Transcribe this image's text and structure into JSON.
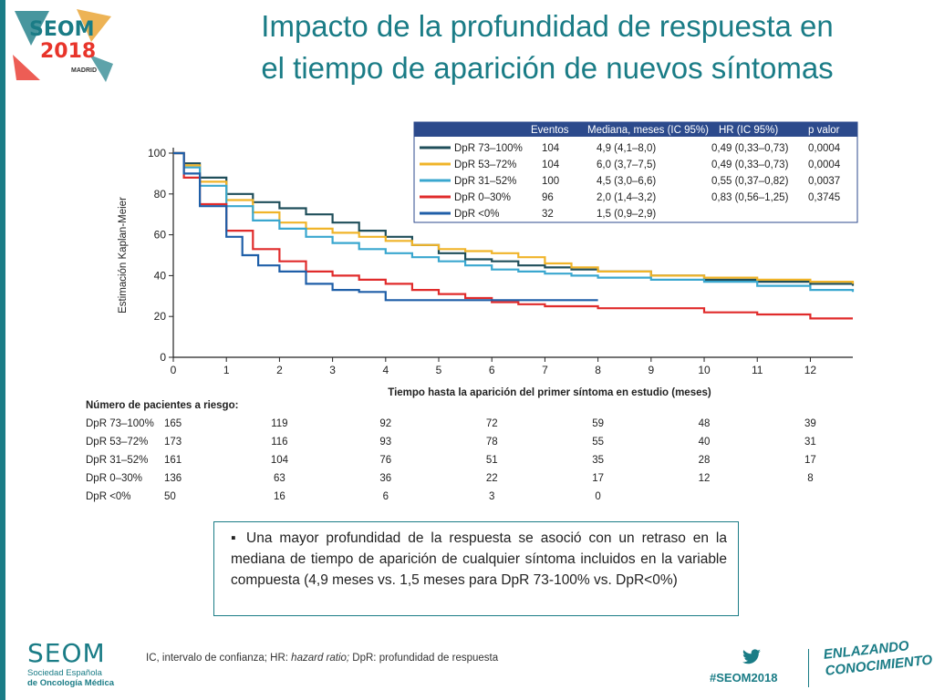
{
  "slide": {
    "title_line1": "Impacto de la profundidad de respuesta  en",
    "title_line2": "el tiempo de aparición de nuevos síntomas",
    "logo_text": "SEOM",
    "logo_year": "2018",
    "logo_city": "MADRID",
    "note": "▪ Una mayor profundidad de la respuesta se asoció con un retraso en la mediana de tiempo de aparición de cualquier síntoma incluidos en la variable compuesta (4,9 meses vs. 1,5 meses para DpR 73-100% vs. DpR<0%)",
    "footer_seom": "SEOM",
    "footer_society_1": "Sociedad Española",
    "footer_society_2": "de Oncología Médica",
    "hashtag": "#SEOM2018",
    "enlazando_1": "ENLAZANDO",
    "enlazando_2": "CONOCIMIENTO",
    "colors": {
      "accent": "#1a7c86",
      "accent_red": "#e8342a"
    }
  },
  "footnote": {
    "prefix": "IC, intervalo de confianza; HR: ",
    "italic": "hazard ratio;",
    "suffix": " DpR: profundidad  de respuesta"
  },
  "chart_data": {
    "type": "line",
    "ylabel": "Estimación Kaplan-Meier",
    "xlabel": "Tiempo hasta la aparición del primer síntoma en estudio (meses)",
    "xlim": [
      0,
      12.8
    ],
    "ylim": [
      0,
      100
    ],
    "xticks": [
      0,
      1,
      2,
      3,
      4,
      5,
      6,
      7,
      8,
      9,
      10,
      11,
      12
    ],
    "yticks": [
      0,
      20,
      40,
      60,
      80,
      100
    ],
    "legend_headers": [
      "Eventos",
      "Mediana, meses (IC 95%)",
      "HR (IC 95%)",
      "p valor"
    ],
    "series": [
      {
        "name": "DpR 73–100%",
        "color": "#1f4e5a",
        "events": "104",
        "median": "4,9 (4,1–8,0)",
        "hr": "0,49 (0,33–0,73)",
        "p": "0,0004",
        "points": [
          [
            0,
            100
          ],
          [
            0.2,
            95
          ],
          [
            0.5,
            88
          ],
          [
            1,
            80
          ],
          [
            1.5,
            76
          ],
          [
            2,
            73
          ],
          [
            2.5,
            70
          ],
          [
            3,
            66
          ],
          [
            3.5,
            62
          ],
          [
            4,
            59
          ],
          [
            4.5,
            55
          ],
          [
            5,
            51
          ],
          [
            5.5,
            48
          ],
          [
            6,
            47
          ],
          [
            6.5,
            45
          ],
          [
            7,
            44
          ],
          [
            7.5,
            43
          ],
          [
            8,
            42
          ],
          [
            9,
            40
          ],
          [
            10,
            38
          ],
          [
            11,
            37
          ],
          [
            12,
            36
          ],
          [
            12.8,
            35
          ]
        ]
      },
      {
        "name": "DpR 53–72%",
        "color": "#f0b429",
        "events": "104",
        "median": "6,0 (3,7–7,5)",
        "hr": "0,49 (0,33–0,73)",
        "p": "0,0004",
        "points": [
          [
            0,
            100
          ],
          [
            0.2,
            94
          ],
          [
            0.5,
            86
          ],
          [
            1,
            77
          ],
          [
            1.5,
            71
          ],
          [
            2,
            66
          ],
          [
            2.5,
            63
          ],
          [
            3,
            61
          ],
          [
            3.5,
            59
          ],
          [
            4,
            57
          ],
          [
            4.5,
            55
          ],
          [
            5,
            53
          ],
          [
            5.5,
            52
          ],
          [
            6,
            51
          ],
          [
            6.5,
            49
          ],
          [
            7,
            46
          ],
          [
            7.5,
            44
          ],
          [
            8,
            42
          ],
          [
            9,
            40
          ],
          [
            10,
            39
          ],
          [
            11,
            38
          ],
          [
            12,
            37
          ],
          [
            12.8,
            36
          ]
        ]
      },
      {
        "name": "DpR 31–52%",
        "color": "#3aa7cf",
        "events": "100",
        "median": "4,5 (3,0–6,6)",
        "hr": "0,55 (0,37–0,82)",
        "p": "0,0037",
        "points": [
          [
            0,
            100
          ],
          [
            0.2,
            93
          ],
          [
            0.5,
            84
          ],
          [
            1,
            74
          ],
          [
            1.5,
            67
          ],
          [
            2,
            63
          ],
          [
            2.5,
            59
          ],
          [
            3,
            56
          ],
          [
            3.5,
            53
          ],
          [
            4,
            51
          ],
          [
            4.5,
            49
          ],
          [
            5,
            47
          ],
          [
            5.5,
            45
          ],
          [
            6,
            43
          ],
          [
            6.5,
            42
          ],
          [
            7,
            41
          ],
          [
            7.5,
            40
          ],
          [
            8,
            39
          ],
          [
            9,
            38
          ],
          [
            10,
            37
          ],
          [
            11,
            35
          ],
          [
            12,
            33
          ],
          [
            12.8,
            32
          ]
        ]
      },
      {
        "name": "DpR 0–30%",
        "color": "#e02b2b",
        "events": "96",
        "median": "2,0 (1,4–3,2)",
        "hr": "0,83 (0,56–1,25)",
        "p": "0,3745",
        "points": [
          [
            0,
            100
          ],
          [
            0.2,
            88
          ],
          [
            0.5,
            75
          ],
          [
            1,
            62
          ],
          [
            1.5,
            53
          ],
          [
            2,
            47
          ],
          [
            2.5,
            42
          ],
          [
            3,
            40
          ],
          [
            3.5,
            38
          ],
          [
            4,
            36
          ],
          [
            4.5,
            33
          ],
          [
            5,
            31
          ],
          [
            5.5,
            29
          ],
          [
            6,
            27
          ],
          [
            6.5,
            26
          ],
          [
            7,
            25
          ],
          [
            8,
            24
          ],
          [
            9,
            24
          ],
          [
            10,
            22
          ],
          [
            11,
            21
          ],
          [
            12,
            19
          ],
          [
            12.8,
            19
          ]
        ]
      },
      {
        "name": "DpR <0%",
        "color": "#1f5fa8",
        "events": "32",
        "median": "1,5 (0,9–2,9)",
        "hr": "",
        "p": "",
        "points": [
          [
            0,
            100
          ],
          [
            0.2,
            90
          ],
          [
            0.5,
            74
          ],
          [
            1,
            59
          ],
          [
            1.3,
            50
          ],
          [
            1.6,
            45
          ],
          [
            2,
            42
          ],
          [
            2.5,
            36
          ],
          [
            3,
            33
          ],
          [
            3.5,
            32
          ],
          [
            4,
            28
          ],
          [
            5,
            28
          ],
          [
            6,
            28
          ],
          [
            7,
            28
          ],
          [
            8,
            28
          ]
        ]
      }
    ],
    "risk_table": {
      "title": "Número de pacientes a riesgo:",
      "times": [
        0,
        2,
        4,
        6,
        8,
        10,
        12
      ],
      "rows": [
        {
          "label": "DpR 73–100%",
          "values": [
            "165",
            "119",
            "92",
            "72",
            "59",
            "48",
            "39"
          ]
        },
        {
          "label": "DpR 53–72%",
          "values": [
            "173",
            "116",
            "93",
            "78",
            "55",
            "40",
            "31"
          ]
        },
        {
          "label": "DpR 31–52%",
          "values": [
            "161",
            "104",
            "76",
            "51",
            "35",
            "28",
            "17"
          ]
        },
        {
          "label": "DpR 0–30%",
          "values": [
            "136",
            "63",
            "36",
            "22",
            "17",
            "12",
            "8"
          ]
        },
        {
          "label": "DpR <0%",
          "values": [
            "50",
            "16",
            "6",
            "3",
            "0",
            "",
            ""
          ]
        }
      ]
    }
  }
}
